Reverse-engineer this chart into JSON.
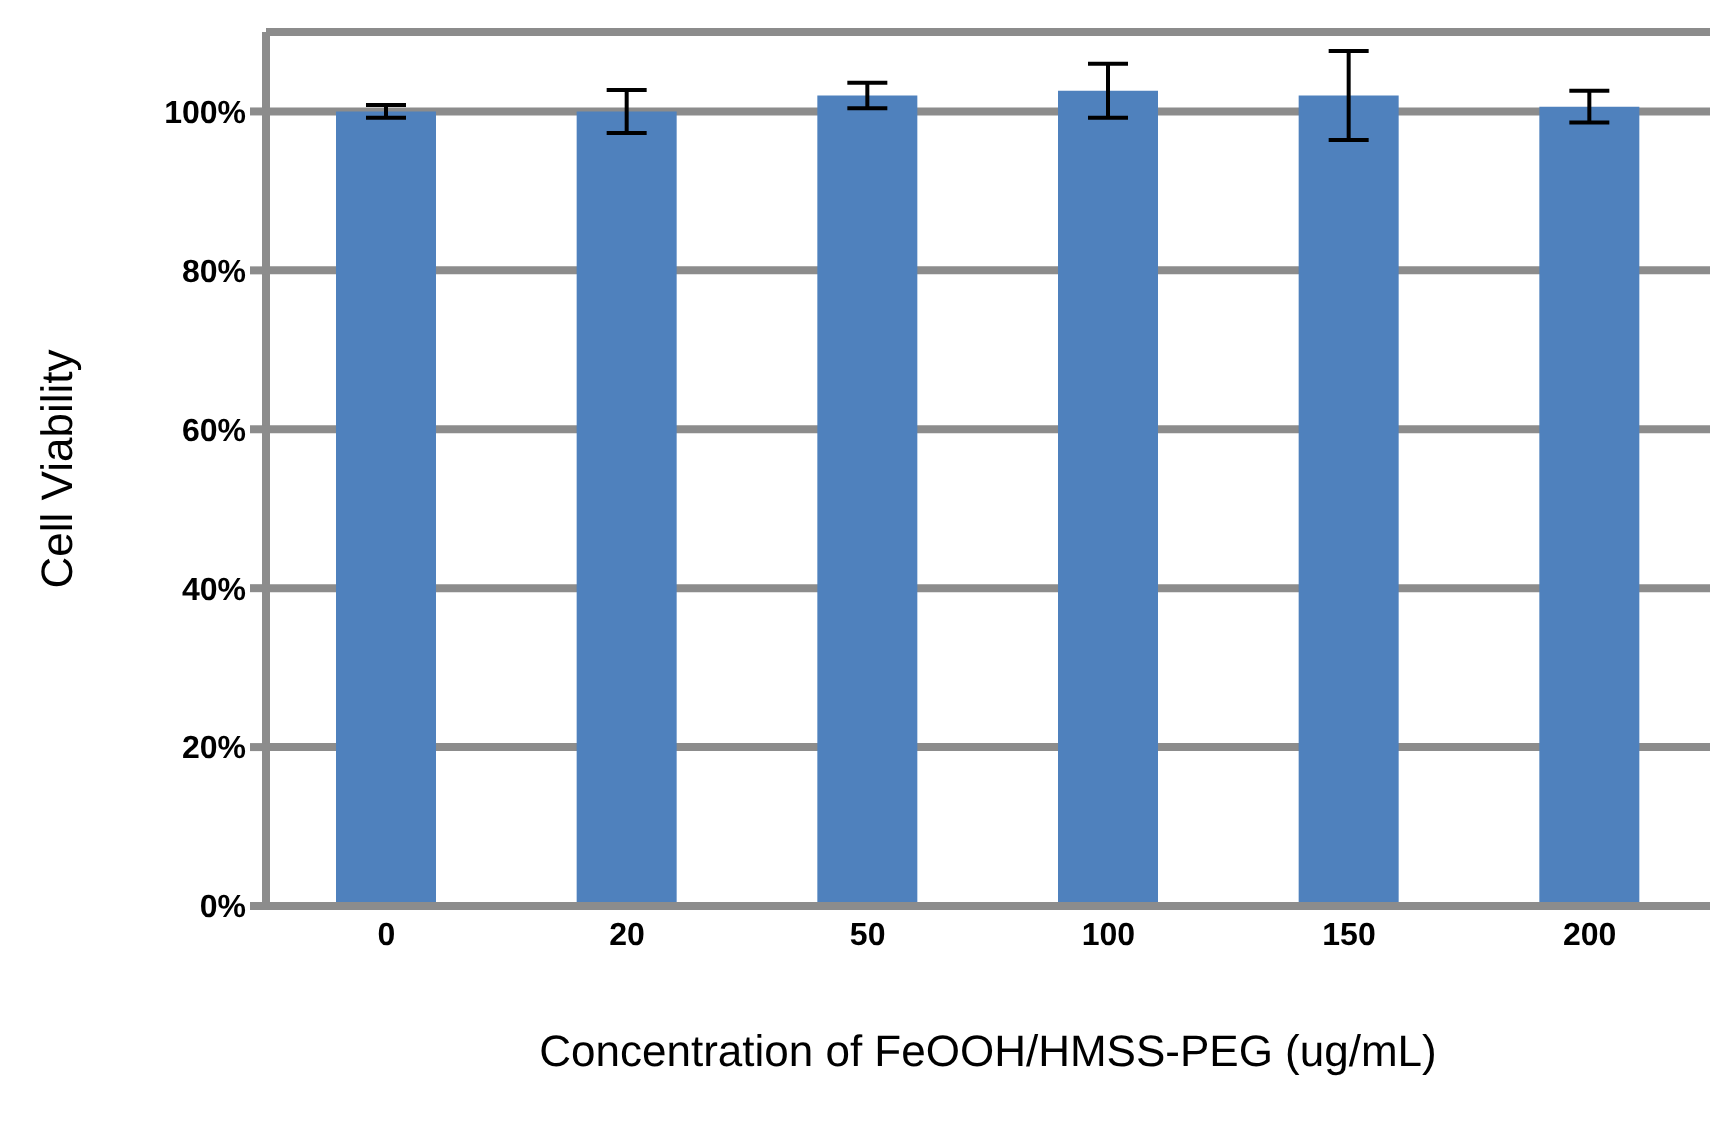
{
  "chart_data": {
    "type": "bar",
    "xlabel": "Concentration of  FeOOH/HMSS-PEG (ug/mL)",
    "ylabel": "Cell Viability",
    "categories": [
      "0",
      "20",
      "50",
      "100",
      "150",
      "200"
    ],
    "values": [
      100,
      100,
      102,
      102.6,
      102,
      100.6
    ],
    "errors": [
      0.8,
      2.7,
      1.6,
      3.4,
      5.6,
      2
    ],
    "color": "#4f81bd",
    "ylim": [
      0,
      110
    ],
    "yticks": [
      {
        "value": 0,
        "label": "0%"
      },
      {
        "value": 20,
        "label": "20%"
      },
      {
        "value": 40,
        "label": "40%"
      },
      {
        "value": 60,
        "label": "60%"
      },
      {
        "value": 80,
        "label": "80%"
      },
      {
        "value": 100,
        "label": "100%"
      }
    ],
    "grid": "y"
  }
}
